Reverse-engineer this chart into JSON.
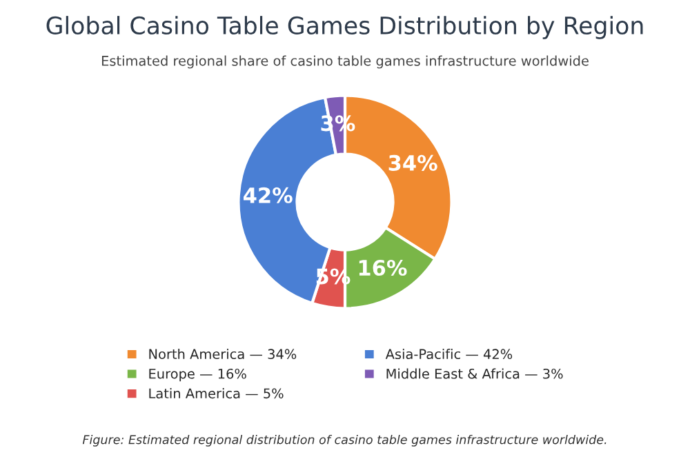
{
  "chart_data": {
    "type": "donut",
    "title": "Global Casino Table Games Distribution by Region",
    "subtitle": "Estimated regional share of casino table games infrastructure worldwide",
    "categories": [
      "North America — 34%",
      "Europe — 16%",
      "Latin America — 5%",
      "Asia-Pacific — 42%",
      "Middle East & Africa — 3%"
    ],
    "values": [
      34,
      16,
      5,
      42,
      3
    ],
    "value_labels": [
      "34%",
      "16%",
      "5%",
      "42%",
      "3%"
    ],
    "colors": [
      "#f08a30",
      "#7ab648",
      "#e0534f",
      "#4a7fd4",
      "#7e5bb5"
    ],
    "legend": "bottom",
    "annotations": [
      "Figure: Estimated regional distribution of casino table games infrastructure worldwide."
    ]
  }
}
